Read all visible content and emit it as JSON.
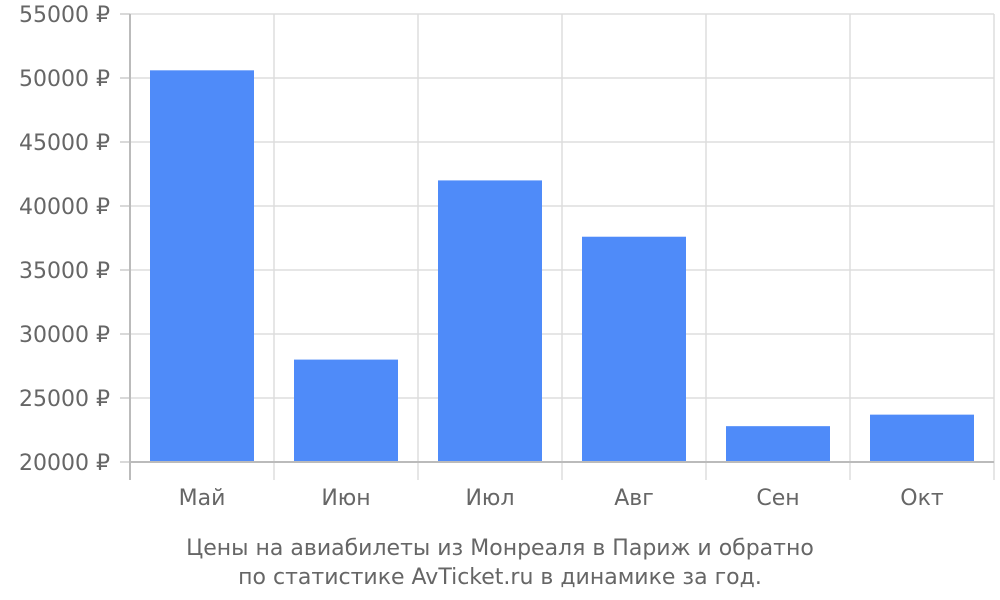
{
  "chart_data": {
    "type": "bar",
    "categories": [
      "Май",
      "Июн",
      "Июл",
      "Авг",
      "Сен",
      "Окт"
    ],
    "series": [
      {
        "values": [
          50600,
          28000,
          42000,
          37600,
          22800,
          23700
        ]
      }
    ],
    "ylim": [
      20000,
      55000
    ],
    "yticks": [
      20000,
      25000,
      30000,
      35000,
      40000,
      45000,
      50000,
      55000
    ],
    "ytick_labels": [
      "20000 ₽",
      "25000 ₽",
      "30000 ₽",
      "35000 ₽",
      "40000 ₽",
      "45000 ₽",
      "50000 ₽",
      "55000 ₽"
    ],
    "grid": true,
    "bar_color": "#4f8bf9",
    "caption_lines": [
      "Цены на авиабилеты из Монреаля в Париж и обратно",
      "по статистике AvTicket.ru в динамике за год."
    ]
  }
}
